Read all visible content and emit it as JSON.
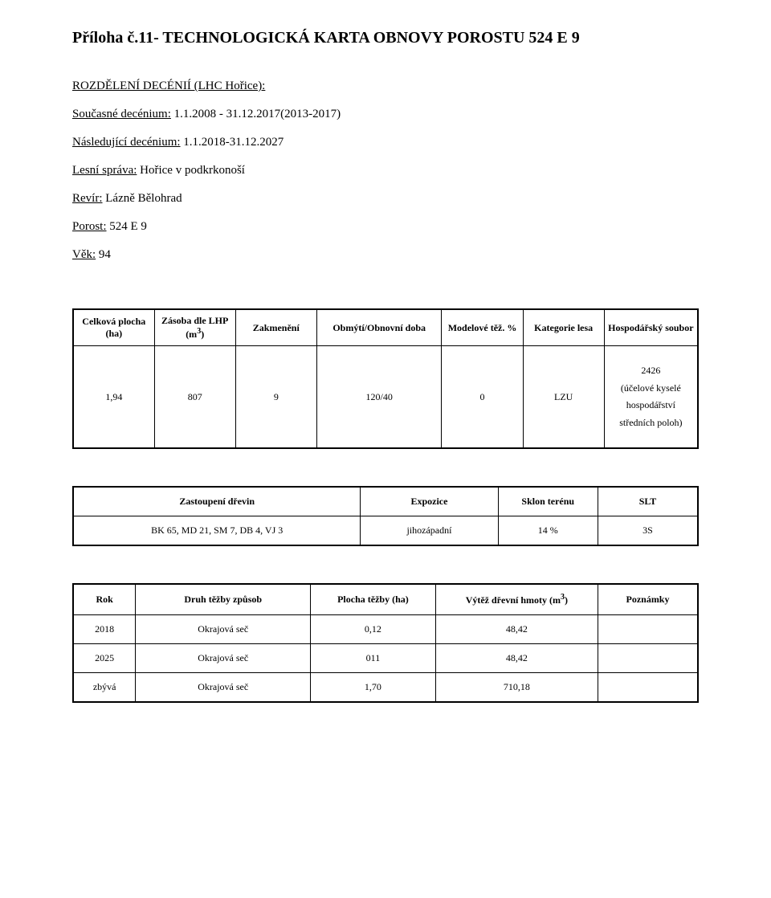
{
  "title": "Příloha č.11- TECHNOLOGICKÁ KARTA OBNOVY POROSTU 524 E 9",
  "section_rozdeleni_label": "ROZDĚLENÍ DECÉNIÍ  (LHC Hořice):",
  "soucasne_label": "Současné decénium:",
  "soucasne_value": "  1.1.2008 - 31.12.2017(2013-2017)",
  "nasledujici_label": "Následující decénium:",
  "nasledujici_value": " 1.1.2018-31.12.2027",
  "lesni_sprava_label": "Lesní správa:",
  "lesni_sprava_value": "  Hořice v podkrkonoší",
  "revir_label": "Revír:",
  "revir_value": "  Lázně Bělohrad",
  "porost_label": "Porost:",
  "porost_value": "  524 E 9",
  "vek_label": "Věk:",
  "vek_value": "  94",
  "table1": {
    "headers": {
      "c0a": "Celková plocha",
      "c0b": "(ha)",
      "c1a": "Zásoba dle LHP",
      "c1b_pre": "(m",
      "c1b_sup": "3",
      "c1b_post": ")",
      "c2": "Zakmenění",
      "c3": "Obmýtí/Obnovní doba",
      "c4": "Modelové těž. %",
      "c5": "Kategorie lesa",
      "c6": "Hospodářský soubor"
    },
    "row": {
      "plocha": "1,94",
      "zasoba": "807",
      "zakm": "9",
      "obmyti": "120/40",
      "model": "0",
      "kat": "LZU",
      "hs_code": "2426",
      "hs_desc1": "(účelové kyselé",
      "hs_desc2": "hospodářství",
      "hs_desc3": "středních poloh)"
    }
  },
  "table2": {
    "headers": {
      "c0": "Zastoupení dřevin",
      "c1": "Expozice",
      "c2": "Sklon terénu",
      "c3": "SLT"
    },
    "row": {
      "dreviny": "BK 65, MD 21, SM 7, DB 4, VJ 3",
      "expozice": "jihozápadní",
      "sklon": "14 %",
      "slt": "3S"
    }
  },
  "table3": {
    "headers": {
      "c0": "Rok",
      "c1": "Druh těžby způsob",
      "c2": "Plocha těžby (ha)",
      "c3_pre": "Výtěž dřevní hmoty (m",
      "c3_sup": "3",
      "c3_post": ")",
      "c4": "Poznámky"
    },
    "rows": [
      {
        "rok": "2018",
        "druh": "Okrajová seč",
        "plocha": "0,12",
        "vytez": "48,42",
        "pozn": ""
      },
      {
        "rok": "2025",
        "druh": "Okrajová seč",
        "plocha": "011",
        "vytez": "48,42",
        "pozn": ""
      },
      {
        "rok": "zbývá",
        "druh": "Okrajová seč",
        "plocha": "1,70",
        "vytez": "710,18",
        "pozn": ""
      }
    ]
  }
}
